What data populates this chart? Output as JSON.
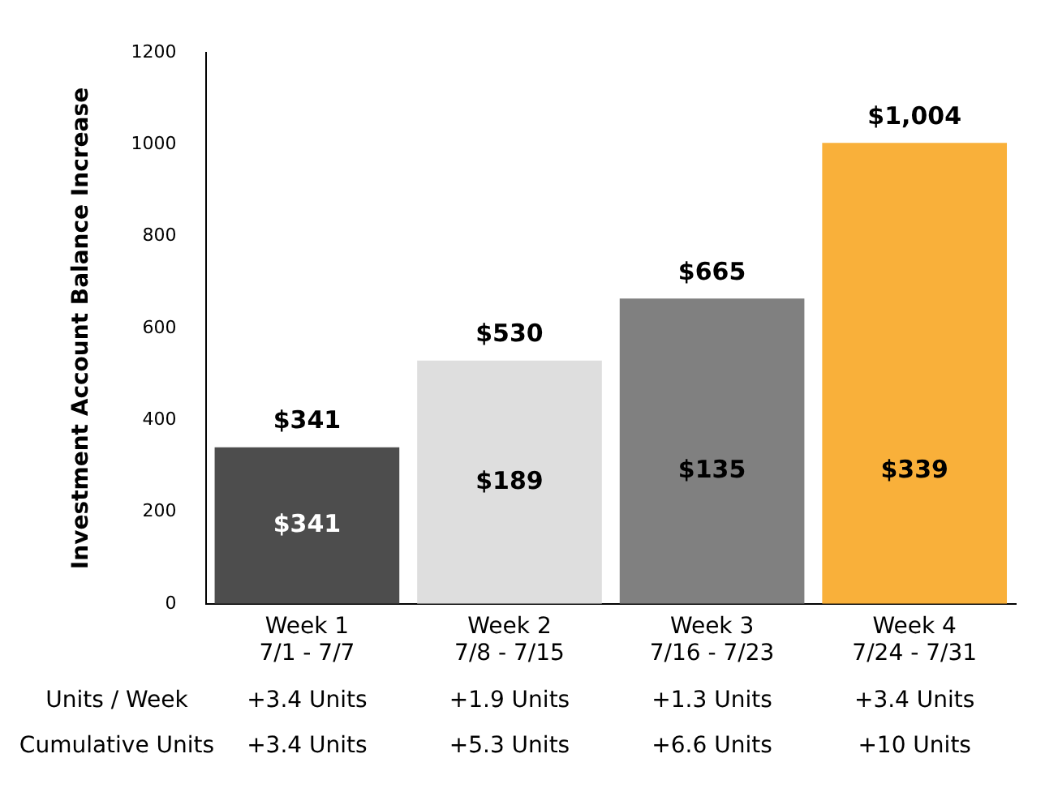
{
  "chart_data": {
    "type": "bar",
    "ylabel": "Investment Account Balance Increase",
    "categories": [
      "Week 1\n7/1 - 7/7",
      "Week 2\n7/8 - 7/15",
      "Week 3\n7/16 - 7/23",
      "Week 4\n7/24 - 7/31"
    ],
    "values": [
      341,
      530,
      665,
      1004
    ],
    "colors": [
      "#4d4d4d",
      "#dedede",
      "#808080",
      "#f9b03a"
    ],
    "value_labels": [
      "$341",
      "$530",
      "$665",
      "$1,004"
    ],
    "ylim": [
      0,
      1200
    ],
    "yticks": [
      0,
      200,
      400,
      600,
      800,
      1000,
      1200
    ],
    "grid": false,
    "legend": false,
    "annotations": [
      "$341",
      "$189",
      "$135",
      "$339",
      "Units / Week",
      "+3.4 Units",
      "+1.9 Units",
      "+1.3 Units",
      "+3.4 Units",
      "Cumulative Units",
      "+3.4 Units",
      "+5.3 Units",
      "+6.6 Units",
      "+10 Units"
    ]
  }
}
